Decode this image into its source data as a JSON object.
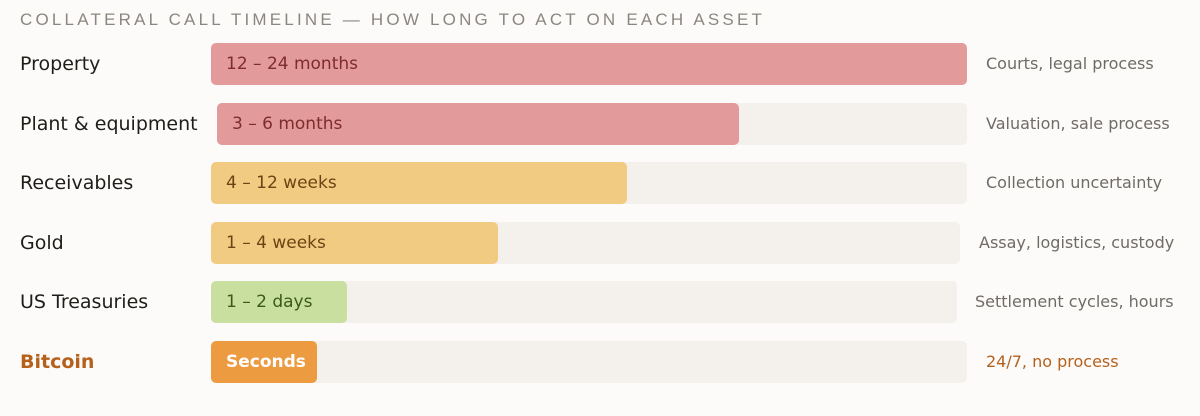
{
  "chart_data": {
    "type": "bar",
    "orientation": "horizontal",
    "title": "COLLATERAL CALL TIMELINE — HOW LONG TO ACT ON EACH ASSET",
    "categories": [
      "Property",
      "Plant & equipment",
      "Receivables",
      "Gold",
      "US Treasuries",
      "Bitcoin"
    ],
    "range_labels": [
      "12 – 24 months",
      "3 – 6 months",
      "4 – 12 weeks",
      "1 – 4 weeks",
      "1 – 2 days",
      "Seconds"
    ],
    "notes": [
      "Courts, legal process",
      "Valuation, sale process",
      "Collection uncertainty",
      "Assay, logistics, custody",
      "Settlement cycles, hours",
      "24/7, no process"
    ],
    "values": [
      1.0,
      0.69,
      0.55,
      0.38,
      0.18,
      0.14
    ],
    "value_unit": "fraction of longest timeline",
    "colors": [
      "#e39a9a",
      "#e39a9a",
      "#f2cb83",
      "#f2cb83",
      "#c8df9f",
      "#ec9b40"
    ],
    "label_colors": [
      "#7e2c2c",
      "#7e2c2c",
      "#6b4413",
      "#6b4413",
      "#3a5a1a",
      "#ffffff"
    ],
    "highlight_category": "Bitcoin",
    "highlight_color": "#b5611c",
    "track_color": "#f4f1ec"
  }
}
